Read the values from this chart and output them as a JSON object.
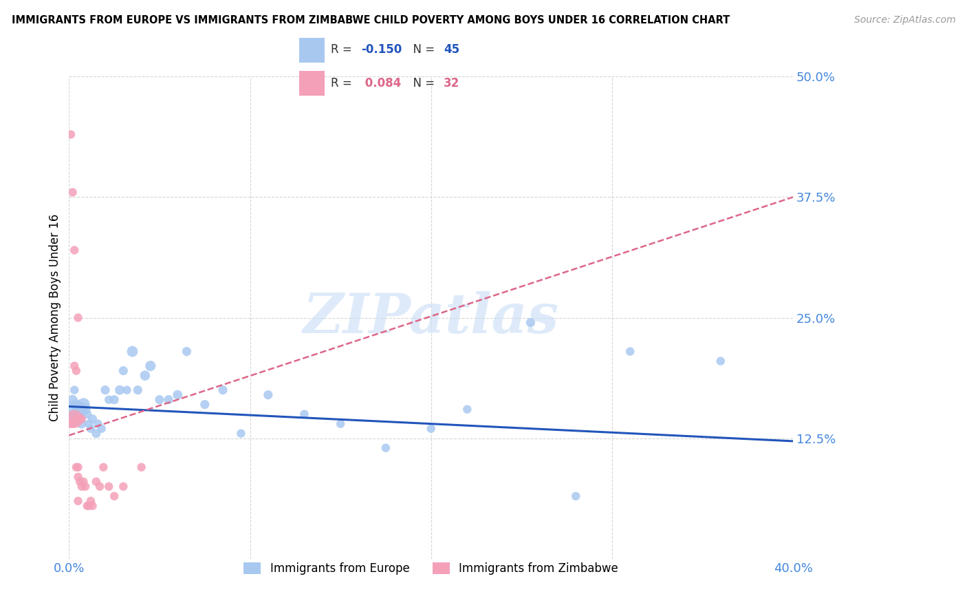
{
  "title": "IMMIGRANTS FROM EUROPE VS IMMIGRANTS FROM ZIMBABWE CHILD POVERTY AMONG BOYS UNDER 16 CORRELATION CHART",
  "source": "Source: ZipAtlas.com",
  "ylabel": "Child Poverty Among Boys Under 16",
  "xlim": [
    0.0,
    0.4
  ],
  "ylim": [
    0.0,
    0.5
  ],
  "xticks": [
    0.0,
    0.1,
    0.2,
    0.3,
    0.4
  ],
  "xticklabels": [
    "0.0%",
    "",
    "",
    "",
    "40.0%"
  ],
  "yticks": [
    0.0,
    0.125,
    0.25,
    0.375,
    0.5
  ],
  "yticklabels": [
    "",
    "12.5%",
    "25.0%",
    "37.5%",
    "50.0%"
  ],
  "europe_R": -0.15,
  "europe_N": 45,
  "zimbabwe_R": 0.084,
  "zimbabwe_N": 32,
  "europe_color": "#a8c8f0",
  "zimbabwe_color": "#f4a0b8",
  "europe_line_color": "#2255bb",
  "zimbabwe_line_color": "#dd6688",
  "watermark": "ZIPatlas",
  "europe_x": [
    0.002,
    0.003,
    0.004,
    0.005,
    0.005,
    0.006,
    0.007,
    0.008,
    0.009,
    0.01,
    0.011,
    0.012,
    0.013,
    0.015,
    0.016,
    0.018,
    0.02,
    0.022,
    0.025,
    0.028,
    0.03,
    0.032,
    0.035,
    0.038,
    0.042,
    0.045,
    0.05,
    0.055,
    0.06,
    0.065,
    0.075,
    0.085,
    0.095,
    0.11,
    0.13,
    0.15,
    0.175,
    0.2,
    0.22,
    0.255,
    0.28,
    0.31,
    0.36,
    0.002,
    0.003
  ],
  "europe_y": [
    0.165,
    0.175,
    0.16,
    0.155,
    0.15,
    0.155,
    0.14,
    0.16,
    0.155,
    0.15,
    0.14,
    0.135,
    0.145,
    0.13,
    0.14,
    0.135,
    0.175,
    0.165,
    0.165,
    0.175,
    0.195,
    0.175,
    0.215,
    0.175,
    0.19,
    0.2,
    0.165,
    0.165,
    0.17,
    0.215,
    0.16,
    0.175,
    0.13,
    0.17,
    0.15,
    0.14,
    0.115,
    0.135,
    0.155,
    0.245,
    0.065,
    0.215,
    0.205,
    0.145,
    0.155
  ],
  "europe_size": [
    100,
    80,
    120,
    150,
    200,
    250,
    100,
    180,
    120,
    90,
    80,
    80,
    90,
    90,
    80,
    80,
    90,
    80,
    90,
    100,
    90,
    80,
    130,
    90,
    110,
    120,
    90,
    90,
    100,
    90,
    90,
    90,
    80,
    90,
    80,
    80,
    80,
    80,
    80,
    90,
    80,
    80,
    80,
    300,
    350
  ],
  "zimbabwe_x": [
    0.001,
    0.001,
    0.002,
    0.002,
    0.003,
    0.003,
    0.003,
    0.004,
    0.004,
    0.004,
    0.005,
    0.005,
    0.005,
    0.005,
    0.005,
    0.006,
    0.006,
    0.007,
    0.007,
    0.008,
    0.009,
    0.01,
    0.011,
    0.012,
    0.013,
    0.015,
    0.017,
    0.019,
    0.022,
    0.025,
    0.03,
    0.04
  ],
  "zimbabwe_y": [
    0.44,
    0.14,
    0.38,
    0.14,
    0.32,
    0.2,
    0.145,
    0.195,
    0.145,
    0.095,
    0.25,
    0.145,
    0.095,
    0.085,
    0.06,
    0.145,
    0.08,
    0.145,
    0.075,
    0.08,
    0.075,
    0.055,
    0.055,
    0.06,
    0.055,
    0.08,
    0.075,
    0.095,
    0.075,
    0.065,
    0.075,
    0.095
  ],
  "zimbabwe_size": [
    80,
    80,
    80,
    80,
    80,
    80,
    350,
    80,
    80,
    80,
    80,
    80,
    80,
    80,
    80,
    80,
    80,
    80,
    80,
    80,
    80,
    80,
    80,
    80,
    80,
    80,
    80,
    80,
    80,
    80,
    80,
    80
  ],
  "europe_trend_x": [
    0.0,
    0.4
  ],
  "europe_trend_y": [
    0.158,
    0.122
  ],
  "zimbabwe_trend_x": [
    0.0,
    0.4
  ],
  "zimbabwe_trend_y": [
    0.128,
    0.375
  ]
}
